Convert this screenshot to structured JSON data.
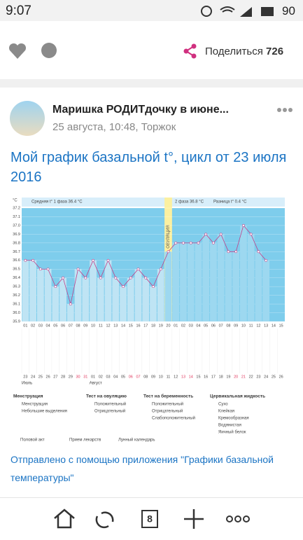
{
  "status_bar": {
    "time": "9:07",
    "battery": "90"
  },
  "actions": {
    "share_label": "Поделиться",
    "share_count": "726"
  },
  "post": {
    "author": "Маришка РОДИТдочку в июне...",
    "meta": "25 августа, 10:48, Торжок",
    "title": "Мой график базальной t°, цикл от 23 июля 2016",
    "footer_text": "Отправлено с помощью приложения \"Графики базальной температуры\""
  },
  "nav": {
    "tabs_count": "8"
  },
  "chart_data": {
    "type": "line",
    "unit": "°C",
    "phase1": "Средняя t° 1 фаза 36.4 °C",
    "phase2": "2 фаза 36.8 °C",
    "diff": "Разница t° 0.4 °C",
    "ovulation": "ОВУЛЯЦИЯ",
    "categories": [
      "01",
      "02",
      "03",
      "04",
      "05",
      "06",
      "07",
      "08",
      "09",
      "10",
      "11",
      "12",
      "13",
      "14",
      "15",
      "16",
      "17",
      "18",
      "19",
      "20",
      "01",
      "02",
      "03",
      "04",
      "05",
      "06",
      "07",
      "08",
      "09",
      "10",
      "11",
      "12",
      "13",
      "14",
      "15"
    ],
    "dates": [
      "23",
      "24",
      "25",
      "26",
      "27",
      "28",
      "29",
      "30",
      "31",
      "01",
      "02",
      "03",
      "04",
      "05",
      "06",
      "07",
      "08",
      "09",
      "10",
      "11",
      "12",
      "13",
      "14",
      "15",
      "16",
      "17",
      "18",
      "19",
      "20",
      "21",
      "22",
      "23",
      "24",
      "25",
      "26"
    ],
    "months": [
      "Июль",
      "Август"
    ],
    "series": [
      {
        "name": "t°",
        "color": "#c0418a",
        "values": [
          36.6,
          36.6,
          36.5,
          36.5,
          36.3,
          36.4,
          36.1,
          36.5,
          36.4,
          36.6,
          36.4,
          36.6,
          36.4,
          36.3,
          36.4,
          36.5,
          36.4,
          36.3,
          36.5,
          36.7,
          36.8,
          36.8,
          36.8,
          36.8,
          36.9,
          36.8,
          36.9,
          36.7,
          36.7,
          37.0,
          36.9,
          36.7,
          36.6,
          null,
          null
        ]
      }
    ],
    "ylim": [
      35.9,
      37.2
    ],
    "yticks": [
      35.9,
      {
        "value": 36,
        "label": "36.0"
      },
      36.1,
      36.2,
      36.3,
      36.4,
      36.5,
      36.6,
      36.7,
      36.8,
      36.9,
      {
        "value": 37,
        "label": "37.0"
      },
      37.1,
      37.2
    ],
    "legend": [
      {
        "title": "Менструация",
        "items": [
          "Менструация",
          "Небольшие выделения"
        ]
      },
      {
        "title": "Тест на овуляцию",
        "items": [
          "Положительный",
          "Отрицательный"
        ]
      },
      {
        "title": "Тест на беременность",
        "items": [
          "Положительный",
          "Отрицательный",
          "Слабоположительный"
        ]
      },
      {
        "title": "Цервикальная жидкость",
        "items": [
          "Сухо",
          "Клейкая",
          "Кремообразная",
          "Водянистая",
          "Яичный белок"
        ]
      }
    ],
    "extra_legend": [
      "Половой акт",
      "Прием лекарств",
      "Лунный календарь"
    ]
  }
}
